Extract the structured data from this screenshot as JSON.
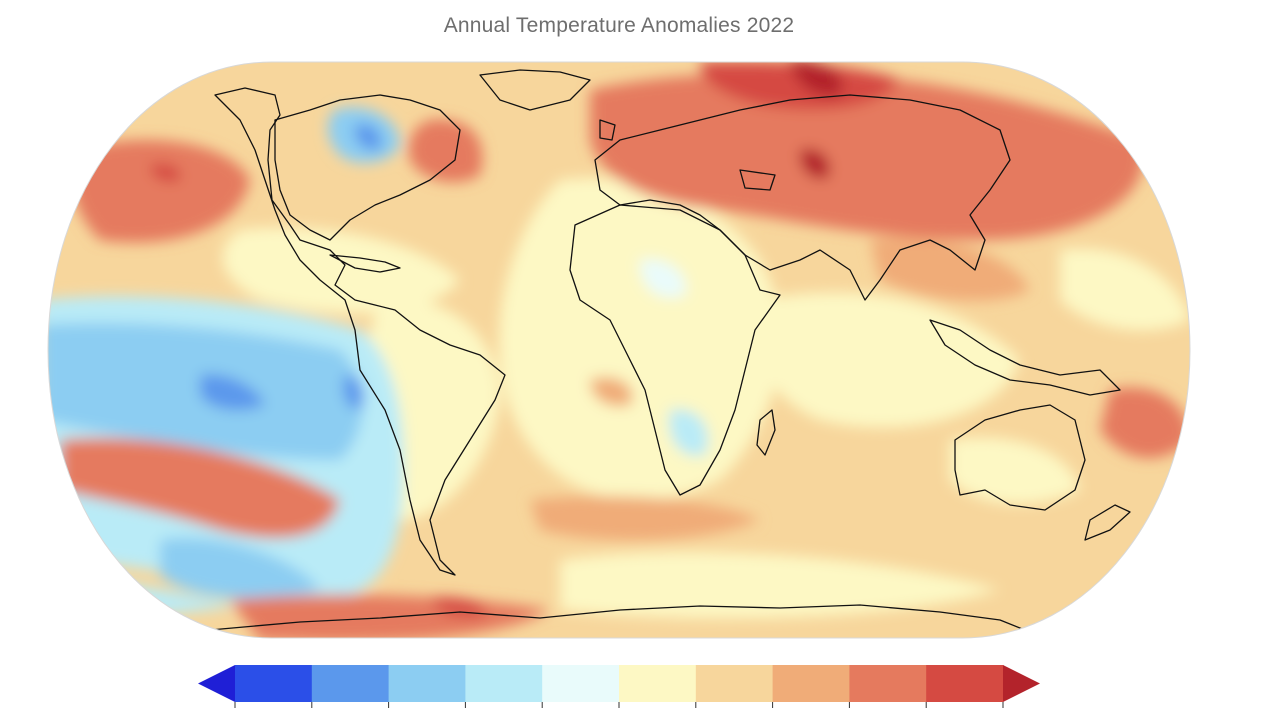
{
  "map": {
    "title": "Annual Temperature Anomalies 2022",
    "projection": "robinson-like",
    "colorbar": {
      "extend": "both",
      "colors": [
        "#1f1fd6",
        "#2b4fe8",
        "#5b98ec",
        "#8ccdf2",
        "#b9ebf7",
        "#e9fbfb",
        "#fdf8c4",
        "#f7d69c",
        "#f0ac78",
        "#e57a5e",
        "#d54a42",
        "#b3232b"
      ]
    },
    "palette": {
      "background_warm": "#f7d69c",
      "land_outline": "#111111"
    }
  }
}
